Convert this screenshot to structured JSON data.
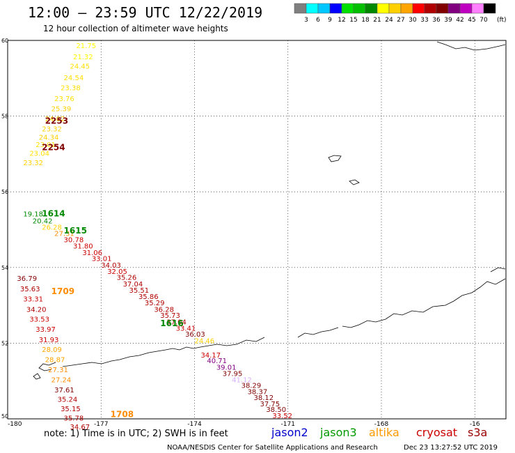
{
  "header": {
    "title": "12:00 – 23:59 UTC 12/22/2019",
    "subtitle": "12 hour collection of altimeter wave heights"
  },
  "colorbar": {
    "unit": "(ft)",
    "colors": [
      "#7f7f7f",
      "#00ffff",
      "#00c8ff",
      "#0000ff",
      "#00e000",
      "#00c000",
      "#008800",
      "#ffff00",
      "#ffd000",
      "#ffa500",
      "#ff0000",
      "#b00000",
      "#800000",
      "#800080",
      "#c000c0",
      "#ff80ff",
      "#000000"
    ],
    "labels": [
      "3",
      "6",
      "9",
      "12",
      "15",
      "18",
      "21",
      "24",
      "27",
      "30",
      "33",
      "36",
      "39",
      "42",
      "45",
      "70"
    ]
  },
  "map": {
    "lon_ticks": [
      "-180",
      "-177",
      "-174",
      "-171",
      "-168",
      "-16"
    ],
    "lat_ticks": [
      "60",
      "58",
      "56",
      "54",
      "52",
      "50"
    ]
  },
  "footer": {
    "note": "note: 1) Time is in UTC; 2) SWH is in feet",
    "legend": [
      {
        "name": "jason2",
        "color": "#0000cc"
      },
      {
        "name": "jason3",
        "color": "#009900"
      },
      {
        "name": "altika",
        "color": "#ff9900"
      },
      {
        "name": "cryosat",
        "color": "#cc0000"
      },
      {
        "name": "s3a",
        "color": "#990000"
      }
    ],
    "credit": "NOAA/NESDIS Center for Satellite Applications and Research",
    "timestamp": "Dec 23 13:27:52 UTC 2019"
  },
  "chart_data": {
    "type": "scatter",
    "xlim": [
      -180,
      -164
    ],
    "ylim": [
      50,
      60
    ],
    "pass_labels": [
      {
        "text": "2253",
        "color": "#800000",
        "lon": -178.8,
        "lat": 57.8
      },
      {
        "text": "2254",
        "color": "#800000",
        "lon": -178.9,
        "lat": 57.1
      },
      {
        "text": "1614",
        "color": "#008800",
        "lon": -178.9,
        "lat": 55.35
      },
      {
        "text": "1615",
        "color": "#008800",
        "lon": -178.2,
        "lat": 54.9
      },
      {
        "text": "1709",
        "color": "#ff8c00",
        "lon": -178.6,
        "lat": 53.3
      },
      {
        "text": "1616",
        "color": "#008800",
        "lon": -175.1,
        "lat": 52.45
      },
      {
        "text": "1708",
        "color": "#ff8c00",
        "lon": -176.7,
        "lat": 50.05
      }
    ],
    "swh_points": [
      {
        "v": "21.75",
        "lon": -177.8,
        "lat": 59.8,
        "c": "#ffff00"
      },
      {
        "v": "21.32",
        "lon": -177.9,
        "lat": 59.5,
        "c": "#ffff00"
      },
      {
        "v": "24.45",
        "lon": -178.0,
        "lat": 59.25,
        "c": "#ffe000"
      },
      {
        "v": "24.54",
        "lon": -178.2,
        "lat": 58.95,
        "c": "#ffe000"
      },
      {
        "v": "23.38",
        "lon": -178.3,
        "lat": 58.68,
        "c": "#ffe000"
      },
      {
        "v": "23.76",
        "lon": -178.5,
        "lat": 58.4,
        "c": "#ffe000"
      },
      {
        "v": "25.39",
        "lon": -178.6,
        "lat": 58.13,
        "c": "#ffd000"
      },
      {
        "v": "24.02",
        "lon": -178.8,
        "lat": 57.86,
        "c": "#ffd000"
      },
      {
        "v": "23.32",
        "lon": -178.9,
        "lat": 57.6,
        "c": "#ffd000"
      },
      {
        "v": "24.34",
        "lon": -179.0,
        "lat": 57.38,
        "c": "#ffd000"
      },
      {
        "v": "23.01",
        "lon": -179.1,
        "lat": 57.18,
        "c": "#ffe000"
      },
      {
        "v": "23.04",
        "lon": -179.3,
        "lat": 56.95,
        "c": "#ffe000"
      },
      {
        "v": "23.32",
        "lon": -179.5,
        "lat": 56.7,
        "c": "#ffd000"
      },
      {
        "v": "19.18",
        "lon": -179.5,
        "lat": 55.35,
        "c": "#008800"
      },
      {
        "v": "20.42",
        "lon": -179.2,
        "lat": 55.17,
        "c": "#008800"
      },
      {
        "v": "26.28",
        "lon": -178.9,
        "lat": 55.0,
        "c": "#ffd000"
      },
      {
        "v": "27.31",
        "lon": -178.5,
        "lat": 54.83,
        "c": "#ff8c00"
      },
      {
        "v": "30.78",
        "lon": -178.2,
        "lat": 54.67,
        "c": "#cc0000"
      },
      {
        "v": "31.80",
        "lon": -177.9,
        "lat": 54.5,
        "c": "#cc0000"
      },
      {
        "v": "31.06",
        "lon": -177.6,
        "lat": 54.33,
        "c": "#cc0000"
      },
      {
        "v": "33.01",
        "lon": -177.3,
        "lat": 54.17,
        "c": "#cc0000"
      },
      {
        "v": "34.03",
        "lon": -177.0,
        "lat": 54.0,
        "c": "#b00000"
      },
      {
        "v": "32.05",
        "lon": -176.8,
        "lat": 53.83,
        "c": "#cc0000"
      },
      {
        "v": "35.26",
        "lon": -176.5,
        "lat": 53.67,
        "c": "#b00000"
      },
      {
        "v": "37.04",
        "lon": -176.3,
        "lat": 53.5,
        "c": "#b00000"
      },
      {
        "v": "35.51",
        "lon": -176.1,
        "lat": 53.33,
        "c": "#b00000"
      },
      {
        "v": "35.86",
        "lon": -175.8,
        "lat": 53.17,
        "c": "#b00000"
      },
      {
        "v": "35.29",
        "lon": -175.6,
        "lat": 53.0,
        "c": "#b00000"
      },
      {
        "v": "36.28",
        "lon": -175.3,
        "lat": 52.83,
        "c": "#b00000"
      },
      {
        "v": "35.73",
        "lon": -175.1,
        "lat": 52.67,
        "c": "#b00000"
      },
      {
        "v": "37.04",
        "lon": -174.9,
        "lat": 52.5,
        "c": "#b00000"
      },
      {
        "v": "33.41",
        "lon": -174.6,
        "lat": 52.33,
        "c": "#cc0000"
      },
      {
        "v": "36.03",
        "lon": -174.3,
        "lat": 52.17,
        "c": "#800000"
      },
      {
        "v": "24.46",
        "lon": -174.0,
        "lat": 52.0,
        "c": "#ffd000"
      },
      {
        "v": "34.17",
        "lon": -173.8,
        "lat": 51.62,
        "c": "#cc0000"
      },
      {
        "v": "40.71",
        "lon": -173.6,
        "lat": 51.47,
        "c": "#800080"
      },
      {
        "v": "39.01",
        "lon": -173.3,
        "lat": 51.3,
        "c": "#800080"
      },
      {
        "v": "37.95",
        "lon": -173.1,
        "lat": 51.13,
        "c": "#800000"
      },
      {
        "v": "41.12",
        "lon": -172.8,
        "lat": 50.97,
        "c": "#d8b0ff"
      },
      {
        "v": "38.29",
        "lon": -172.5,
        "lat": 50.82,
        "c": "#800000"
      },
      {
        "v": "38.37",
        "lon": -172.3,
        "lat": 50.65,
        "c": "#800000"
      },
      {
        "v": "38.12",
        "lon": -172.1,
        "lat": 50.5,
        "c": "#800000"
      },
      {
        "v": "37.75",
        "lon": -171.9,
        "lat": 50.33,
        "c": "#800000"
      },
      {
        "v": "38.50",
        "lon": -171.7,
        "lat": 50.18,
        "c": "#800000"
      },
      {
        "v": "33.52",
        "lon": -171.5,
        "lat": 50.02,
        "c": "#cc0000"
      },
      {
        "v": "36.79",
        "lon": -179.7,
        "lat": 53.65,
        "c": "#800000"
      },
      {
        "v": "35.63",
        "lon": -179.6,
        "lat": 53.37,
        "c": "#b00000"
      },
      {
        "v": "33.31",
        "lon": -179.5,
        "lat": 53.1,
        "c": "#cc0000"
      },
      {
        "v": "34.20",
        "lon": -179.4,
        "lat": 52.83,
        "c": "#b00000"
      },
      {
        "v": "33.53",
        "lon": -179.3,
        "lat": 52.57,
        "c": "#cc0000"
      },
      {
        "v": "33.97",
        "lon": -179.1,
        "lat": 52.3,
        "c": "#cc0000"
      },
      {
        "v": "31.93",
        "lon": -179.0,
        "lat": 52.03,
        "c": "#cc0000"
      },
      {
        "v": "28.09",
        "lon": -178.9,
        "lat": 51.77,
        "c": "#ffa500"
      },
      {
        "v": "28.87",
        "lon": -178.8,
        "lat": 51.5,
        "c": "#ffa500"
      },
      {
        "v": "27.31",
        "lon": -178.7,
        "lat": 51.23,
        "c": "#ff8c00"
      },
      {
        "v": "27.24",
        "lon": -178.6,
        "lat": 50.97,
        "c": "#ff8c00"
      },
      {
        "v": "37.61",
        "lon": -178.5,
        "lat": 50.7,
        "c": "#800000"
      },
      {
        "v": "35.24",
        "lon": -178.4,
        "lat": 50.45,
        "c": "#b00000"
      },
      {
        "v": "35.15",
        "lon": -178.3,
        "lat": 50.2,
        "c": "#b00000"
      },
      {
        "v": "35.78",
        "lon": -178.2,
        "lat": 49.95,
        "c": "#b00000"
      },
      {
        "v": "34.67",
        "lon": -178.0,
        "lat": 49.72,
        "c": "#b00000"
      }
    ]
  }
}
